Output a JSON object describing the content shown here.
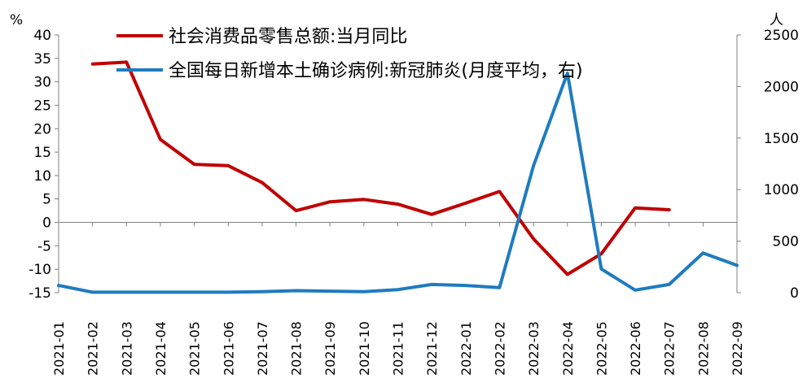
{
  "chart_data": {
    "type": "line",
    "title": "",
    "left_axis": {
      "unit": "%",
      "ylim": [
        -15,
        40
      ],
      "ticks": [
        40,
        35,
        30,
        25,
        20,
        15,
        10,
        5,
        0,
        -5,
        -10,
        -15
      ]
    },
    "right_axis": {
      "unit": "人",
      "ylim": [
        0,
        2500
      ],
      "ticks": [
        2500,
        2000,
        1500,
        1000,
        500,
        0
      ]
    },
    "categories": [
      "2021-01",
      "2021-02",
      "2021-03",
      "2021-04",
      "2021-05",
      "2021-06",
      "2021-07",
      "2021-08",
      "2021-09",
      "2021-10",
      "2021-11",
      "2021-12",
      "2022-01",
      "2022-02",
      "2022-03",
      "2022-04",
      "2022-05",
      "2022-06",
      "2022-07",
      "2022-08",
      "2022-09"
    ],
    "grid": false,
    "legend_position": "top",
    "series": [
      {
        "name": "社会消费品零售总额:当月同比",
        "axis": "left",
        "color": "#c00000",
        "values": [
          null,
          33.8,
          34.2,
          17.7,
          12.4,
          12.1,
          8.5,
          2.5,
          4.4,
          4.9,
          3.9,
          1.7,
          4.1,
          6.6,
          -3.5,
          -11.1,
          -6.7,
          3.1,
          2.7,
          null,
          null
        ]
      },
      {
        "name": "全国每日新增本土确诊病例:新冠肺炎(月度平均，右)",
        "axis": "right",
        "color": "#1f7bbf",
        "values": [
          70,
          5,
          5,
          5,
          5,
          5,
          10,
          20,
          15,
          10,
          30,
          80,
          70,
          50,
          1230,
          2130,
          230,
          25,
          80,
          385,
          265
        ]
      }
    ]
  }
}
